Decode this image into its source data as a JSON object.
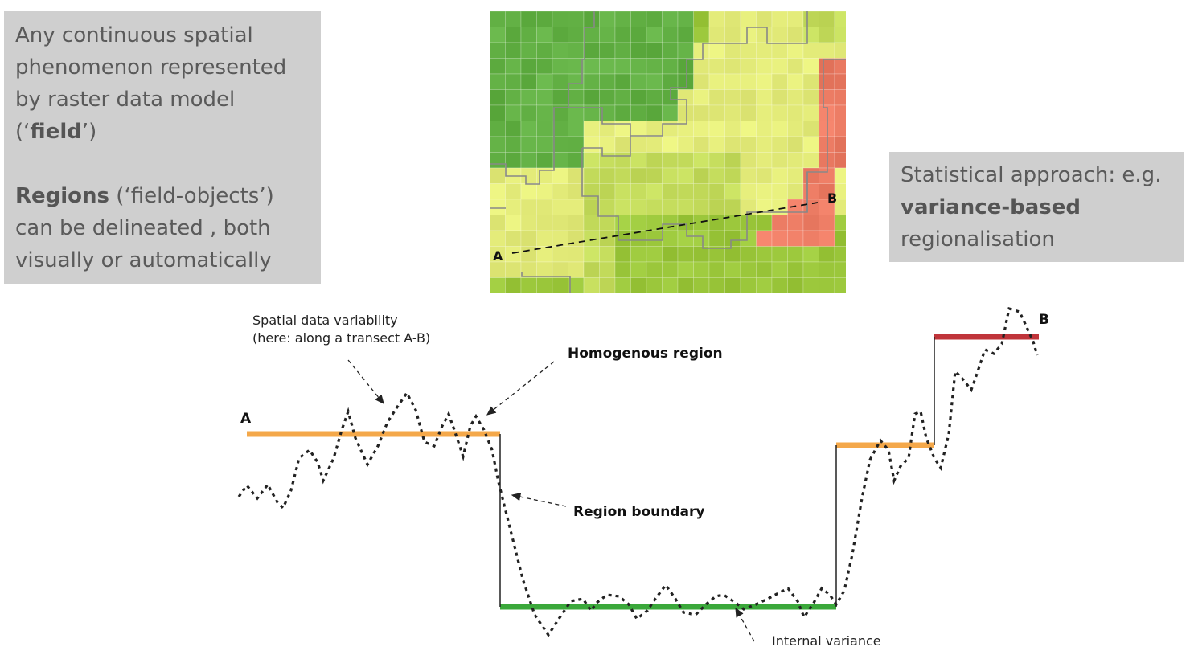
{
  "left_box": {
    "line1": "Any continuous spatial",
    "line2": "phenomenon represented",
    "line3": "by raster data model",
    "line4_pre": "(‘",
    "line4_bold": "field",
    "line4_post": "’)",
    "line5_bold": "Regions",
    "line5_rest": " (‘field-objects’)",
    "line6": "can be delineated , both",
    "line7": "visually or automatically"
  },
  "right_box": {
    "line1": "Statistical approach: e.g.",
    "line2_bold": "variance-based",
    "line3": "regionalisation"
  },
  "map": {
    "point_a": "A",
    "point_b": "B"
  },
  "diagram": {
    "variability_line1": "Spatial data variability",
    "variability_line2": "(here: along a transect A-B)",
    "homogenous": "Homogenous region",
    "boundary": "Region boundary",
    "internal": "Internal variance",
    "label_a": "A",
    "label_b": "B"
  },
  "colors": {
    "dark_green": "#62b044",
    "mid_green": "#9cc83c",
    "light_green": "#c4dc5c",
    "yellow": "#e4ec7a",
    "red": "#ec7c64",
    "orange_bar": "#f4a84a",
    "green_bar": "#3aa83a",
    "red_bar": "#c0343a"
  }
}
